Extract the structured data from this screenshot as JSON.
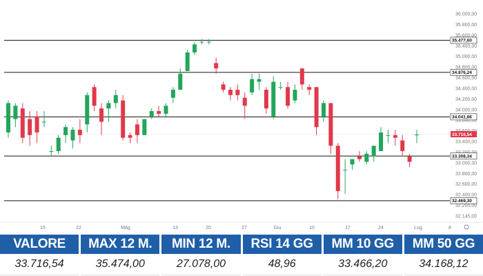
{
  "colors": {
    "up": "#22a65a",
    "down": "#e0394b",
    "level_line": "#111111",
    "current": "#e0394b",
    "header_bg": "#1f5fa8"
  },
  "chart_data": {
    "type": "candlestick",
    "y_ticks": [
      "36.000,00",
      "35.800,00",
      "35.600,00",
      "35.400,00",
      "35.000,00",
      "34.800,00",
      "34.600,00",
      "34.400,00",
      "34.200,00",
      "34.000,00",
      "33.800,00",
      "33.600,00",
      "33.400,00",
      "33.200,00",
      "33.000,00",
      "32.800,00",
      "32.600,00",
      "32.400,00",
      "32.205,00",
      "32.145,00"
    ],
    "x_ticks": [
      "15",
      "22",
      "Mag",
      "13",
      "20",
      "27",
      "Giu",
      "10",
      "17",
      "24",
      "Lug",
      "8"
    ],
    "ylim": [
      32000,
      36100
    ],
    "levels": [
      {
        "value": 35477.6,
        "label": "35.477,60"
      },
      {
        "value": 34876.24,
        "label": "34.876,24"
      },
      {
        "value": 34041.86,
        "label": "34.041,86"
      },
      {
        "value": 33308.34,
        "label": "33.308,34"
      },
      {
        "value": 32469.3,
        "label": "32.469,30"
      }
    ],
    "current": {
      "value": 33716.54,
      "label": "33.716,54"
    },
    "candles": [
      {
        "o": 33750,
        "h": 34350,
        "l": 33650,
        "c": 34300
      },
      {
        "o": 34000,
        "h": 34300,
        "l": 33850,
        "c": 34250
      },
      {
        "o": 34200,
        "h": 34300,
        "l": 33550,
        "c": 33650
      },
      {
        "o": 34000,
        "h": 34150,
        "l": 33500,
        "c": 33700
      },
      {
        "o": 34050,
        "h": 34150,
        "l": 33550,
        "c": 33750
      },
      {
        "o": 33950,
        "h": 34150,
        "l": 33850,
        "c": 33950
      },
      {
        "o": 33400,
        "h": 33500,
        "l": 33300,
        "c": 33400
      },
      {
        "o": 33400,
        "h": 33700,
        "l": 33350,
        "c": 33650
      },
      {
        "o": 33700,
        "h": 33900,
        "l": 33550,
        "c": 33850
      },
      {
        "o": 33600,
        "h": 33850,
        "l": 33450,
        "c": 33800
      },
      {
        "o": 33800,
        "h": 34000,
        "l": 33550,
        "c": 33700
      },
      {
        "o": 33900,
        "h": 34500,
        "l": 33750,
        "c": 34450
      },
      {
        "o": 34600,
        "h": 34650,
        "l": 34150,
        "c": 34250
      },
      {
        "o": 34200,
        "h": 34300,
        "l": 33700,
        "c": 33950
      },
      {
        "o": 34200,
        "h": 34350,
        "l": 33950,
        "c": 34300
      },
      {
        "o": 34300,
        "h": 34550,
        "l": 34200,
        "c": 34450
      },
      {
        "o": 34350,
        "h": 34450,
        "l": 33600,
        "c": 33650
      },
      {
        "o": 33700,
        "h": 33750,
        "l": 33550,
        "c": 33650
      },
      {
        "o": 33900,
        "h": 34000,
        "l": 33550,
        "c": 33700
      },
      {
        "o": 33700,
        "h": 34000,
        "l": 33700,
        "c": 34000
      },
      {
        "o": 34050,
        "h": 34200,
        "l": 34000,
        "c": 34150
      },
      {
        "o": 34150,
        "h": 34250,
        "l": 34050,
        "c": 34100
      },
      {
        "o": 34100,
        "h": 34300,
        "l": 34050,
        "c": 34250
      },
      {
        "o": 34400,
        "h": 34600,
        "l": 34300,
        "c": 34550
      },
      {
        "o": 34550,
        "h": 34950,
        "l": 34550,
        "c": 34850
      },
      {
        "o": 34900,
        "h": 35300,
        "l": 34900,
        "c": 35250
      },
      {
        "o": 35250,
        "h": 35450,
        "l": 35200,
        "c": 35400
      },
      {
        "o": 35450,
        "h": 35500,
        "l": 35400,
        "c": 35450
      },
      {
        "o": 35450,
        "h": 35500,
        "l": 35400,
        "c": 35450
      },
      {
        "o": 35050,
        "h": 35150,
        "l": 34850,
        "c": 34950
      },
      {
        "o": 34650,
        "h": 34700,
        "l": 34500,
        "c": 34550
      },
      {
        "o": 34550,
        "h": 34600,
        "l": 34350,
        "c": 34450
      },
      {
        "o": 34550,
        "h": 34650,
        "l": 34350,
        "c": 34450
      },
      {
        "o": 34400,
        "h": 34500,
        "l": 34000,
        "c": 34250
      },
      {
        "o": 34500,
        "h": 34850,
        "l": 34450,
        "c": 34750
      },
      {
        "o": 34700,
        "h": 34850,
        "l": 34550,
        "c": 34750
      },
      {
        "o": 34550,
        "h": 34600,
        "l": 34100,
        "c": 34200
      },
      {
        "o": 34050,
        "h": 34800,
        "l": 34000,
        "c": 34700
      },
      {
        "o": 34600,
        "h": 34700,
        "l": 34550,
        "c": 34600
      },
      {
        "o": 34600,
        "h": 34700,
        "l": 34200,
        "c": 34250
      },
      {
        "o": 34350,
        "h": 34650,
        "l": 34300,
        "c": 34550
      },
      {
        "o": 34950,
        "h": 34950,
        "l": 34550,
        "c": 34650
      },
      {
        "o": 34600,
        "h": 34650,
        "l": 34450,
        "c": 34550
      },
      {
        "o": 34600,
        "h": 34600,
        "l": 33700,
        "c": 33850
      },
      {
        "o": 34050,
        "h": 34350,
        "l": 33950,
        "c": 34300
      },
      {
        "o": 34300,
        "h": 34300,
        "l": 33350,
        "c": 33500
      },
      {
        "o": 33500,
        "h": 33550,
        "l": 32500,
        "c": 32650
      },
      {
        "o": 33050,
        "h": 33250,
        "l": 32600,
        "c": 33050
      },
      {
        "o": 33150,
        "h": 33250,
        "l": 33050,
        "c": 33250
      },
      {
        "o": 33300,
        "h": 33400,
        "l": 33200,
        "c": 33250
      },
      {
        "o": 33200,
        "h": 33400,
        "l": 33150,
        "c": 33350
      },
      {
        "o": 33300,
        "h": 33500,
        "l": 33200,
        "c": 33500
      },
      {
        "o": 33400,
        "h": 33850,
        "l": 33400,
        "c": 33750
      },
      {
        "o": 33700,
        "h": 33800,
        "l": 33550,
        "c": 33700
      },
      {
        "o": 33700,
        "h": 33800,
        "l": 33500,
        "c": 33650
      },
      {
        "o": 33600,
        "h": 33700,
        "l": 33300,
        "c": 33400
      },
      {
        "o": 33300,
        "h": 33350,
        "l": 33100,
        "c": 33200
      },
      {
        "o": 33700,
        "h": 33800,
        "l": 33550,
        "c": 33710
      }
    ]
  },
  "stats": {
    "headers": [
      "VALORE",
      "MAX 12 M.",
      "MIN 12 M.",
      "RSI 14 GG",
      "MM 10 GG",
      "MM 50 GG"
    ],
    "values": [
      "33.716,54",
      "35.474,00",
      "27.078,00",
      "48,96",
      "33.466,20",
      "34.168,12"
    ]
  }
}
